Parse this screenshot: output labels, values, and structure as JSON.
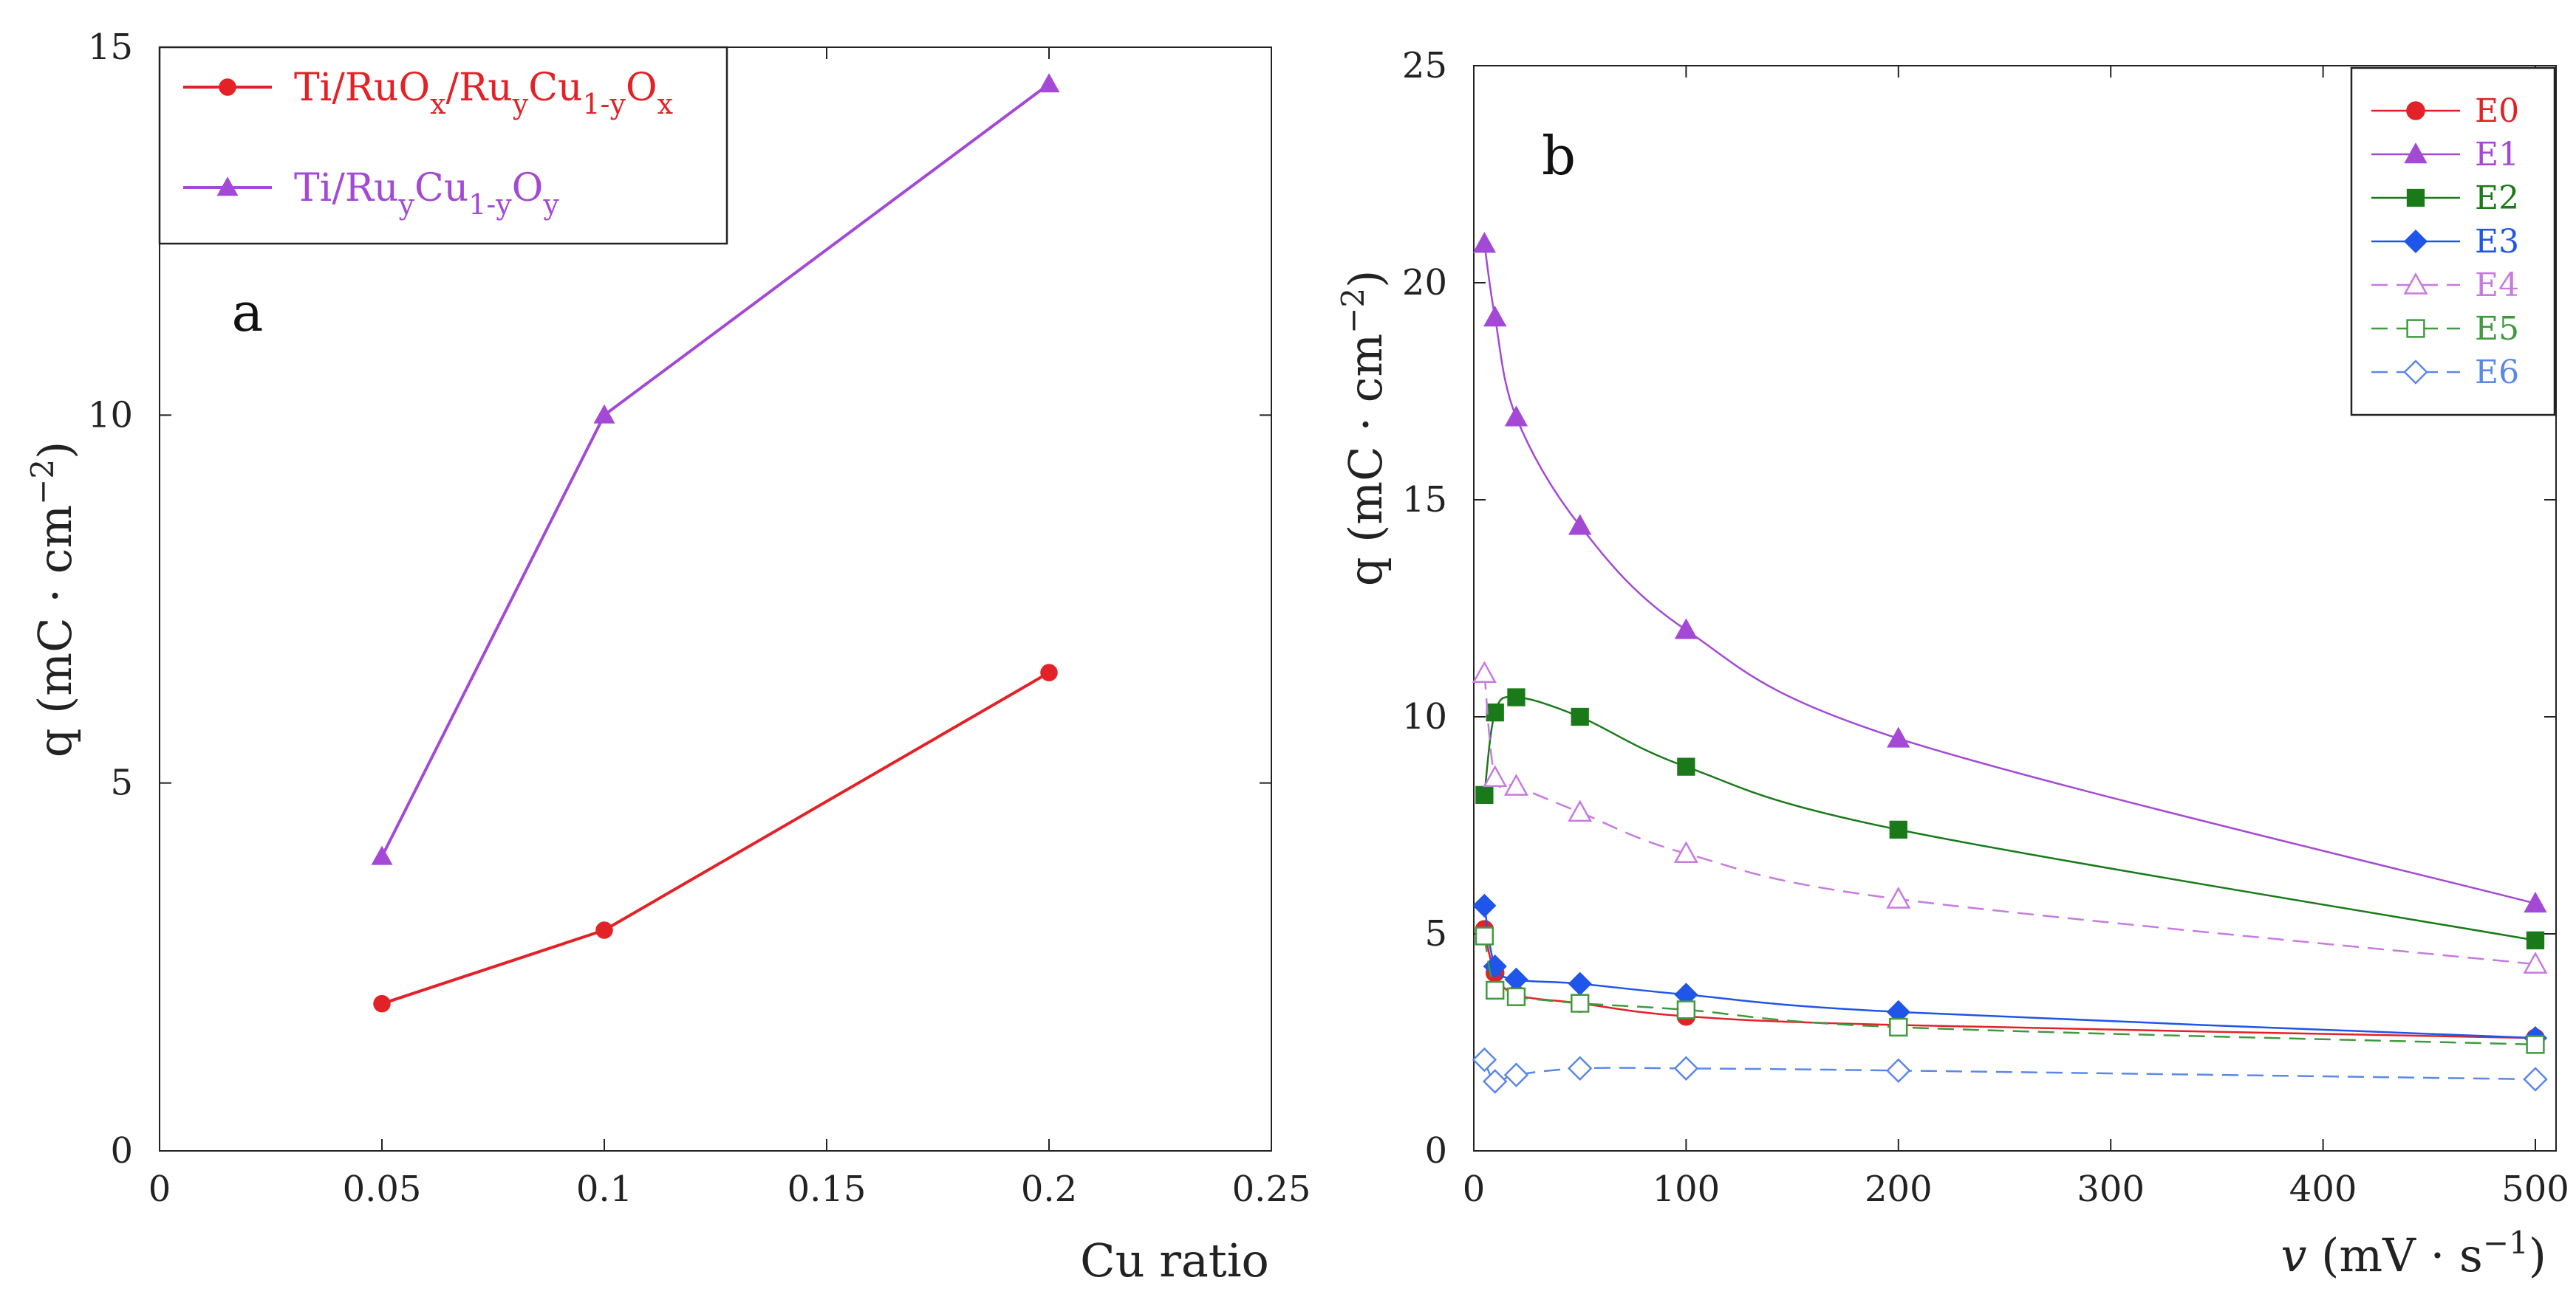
{
  "chart_data": [
    {
      "id": "a",
      "type": "line",
      "panel_label": "a",
      "xlabel": "Cu ratio",
      "ylabel": {
        "main": "q (mC · cm",
        "sup": "−2",
        "close": ")"
      },
      "xlim": [
        0,
        0.25
      ],
      "ylim": [
        0,
        15
      ],
      "xticks": [
        0,
        0.05,
        0.1,
        0.15,
        0.2,
        0.25
      ],
      "xtick_labels": [
        "0",
        "0.05",
        "0.1",
        "0.15",
        "0.2",
        "0.25"
      ],
      "yticks": [
        0,
        5,
        10,
        15
      ],
      "ytick_labels": [
        "0",
        "5",
        "10",
        "15"
      ],
      "legend_position": "top-left",
      "series": [
        {
          "key": "ruox",
          "name": "Ti/RuOx/RuyCu1-yOx",
          "legend_parts": [
            {
              "t": "Ti/RuO",
              "s": "n"
            },
            {
              "t": "x",
              "s": "sub"
            },
            {
              "t": "/Ru",
              "s": "n"
            },
            {
              "t": "y",
              "s": "sub"
            },
            {
              "t": "Cu",
              "s": "n"
            },
            {
              "t": "1-y",
              "s": "sub"
            },
            {
              "t": "O",
              "s": "n"
            },
            {
              "t": "x",
              "s": "sub"
            }
          ],
          "color": "#e32227",
          "marker": "circle",
          "x": [
            0.05,
            0.1,
            0.2
          ],
          "y": [
            2.0,
            3.0,
            6.5
          ]
        },
        {
          "key": "rucuo",
          "name": "Ti/RuyCu1-yOy",
          "legend_parts": [
            {
              "t": "Ti/Ru",
              "s": "n"
            },
            {
              "t": "y",
              "s": "sub"
            },
            {
              "t": "Cu",
              "s": "n"
            },
            {
              "t": "1-y",
              "s": "sub"
            },
            {
              "t": "O",
              "s": "n"
            },
            {
              "t": "y",
              "s": "sub"
            }
          ],
          "color": "#a349d6",
          "marker": "triangle",
          "x": [
            0.05,
            0.1,
            0.2
          ],
          "y": [
            4.0,
            10.0,
            14.5
          ]
        }
      ]
    },
    {
      "id": "b",
      "type": "line",
      "panel_label": "b",
      "xlabel": {
        "var": "v",
        "main": " (mV · s",
        "sup": "−1",
        "close": ")"
      },
      "ylabel": {
        "main": "q (mC · cm",
        "sup": "−2",
        "close": ")"
      },
      "xlim": [
        0,
        500
      ],
      "ylim": [
        0,
        25
      ],
      "xticks": [
        0,
        100,
        200,
        300,
        400,
        500
      ],
      "xtick_labels": [
        "0",
        "100",
        "200",
        "300",
        "400",
        "500"
      ],
      "yticks": [
        0,
        5,
        10,
        15,
        20,
        25
      ],
      "ytick_labels": [
        "0",
        "5",
        "10",
        "15",
        "20",
        "25"
      ],
      "legend_position": "top-right",
      "series": [
        {
          "name": "E0",
          "color": "#e32227",
          "marker": "circle",
          "filled": true,
          "dashed": false,
          "x": [
            5,
            10,
            20,
            50,
            100,
            200,
            500
          ],
          "y": [
            5.1,
            4.1,
            3.6,
            3.4,
            3.1,
            2.9,
            2.6
          ]
        },
        {
          "name": "E1",
          "color": "#a349d6",
          "marker": "triangle",
          "filled": true,
          "dashed": false,
          "x": [
            5,
            10,
            20,
            50,
            100,
            200,
            500
          ],
          "y": [
            20.9,
            19.2,
            16.9,
            14.4,
            12.0,
            9.5,
            5.7
          ]
        },
        {
          "name": "E2",
          "color": "#1a7a1a",
          "marker": "square",
          "filled": true,
          "dashed": false,
          "x": [
            5,
            10,
            20,
            50,
            100,
            200,
            500
          ],
          "y": [
            8.2,
            10.1,
            10.45,
            10.0,
            8.85,
            7.4,
            4.85
          ]
        },
        {
          "name": "E3",
          "color": "#1f55e8",
          "marker": "diamond",
          "filled": true,
          "dashed": false,
          "x": [
            5,
            10,
            20,
            50,
            100,
            200,
            500
          ],
          "y": [
            5.65,
            4.25,
            3.95,
            3.85,
            3.6,
            3.2,
            2.6
          ]
        },
        {
          "name": "E4",
          "color": "#c77ae0",
          "marker": "triangle",
          "filled": false,
          "dashed": true,
          "x": [
            5,
            10,
            20,
            50,
            100,
            200,
            500
          ],
          "y": [
            11.0,
            8.6,
            8.4,
            7.8,
            6.85,
            5.8,
            4.3
          ]
        },
        {
          "name": "E5",
          "color": "#3f9a3f",
          "marker": "square",
          "filled": false,
          "dashed": true,
          "x": [
            5,
            10,
            20,
            50,
            100,
            200,
            500
          ],
          "y": [
            4.95,
            3.7,
            3.55,
            3.4,
            3.25,
            2.85,
            2.45
          ]
        },
        {
          "name": "E6",
          "color": "#5a88e8",
          "marker": "diamond",
          "filled": false,
          "dashed": true,
          "x": [
            5,
            10,
            20,
            50,
            100,
            200,
            500
          ],
          "y": [
            2.1,
            1.6,
            1.75,
            1.9,
            1.9,
            1.85,
            1.65
          ]
        }
      ]
    }
  ]
}
